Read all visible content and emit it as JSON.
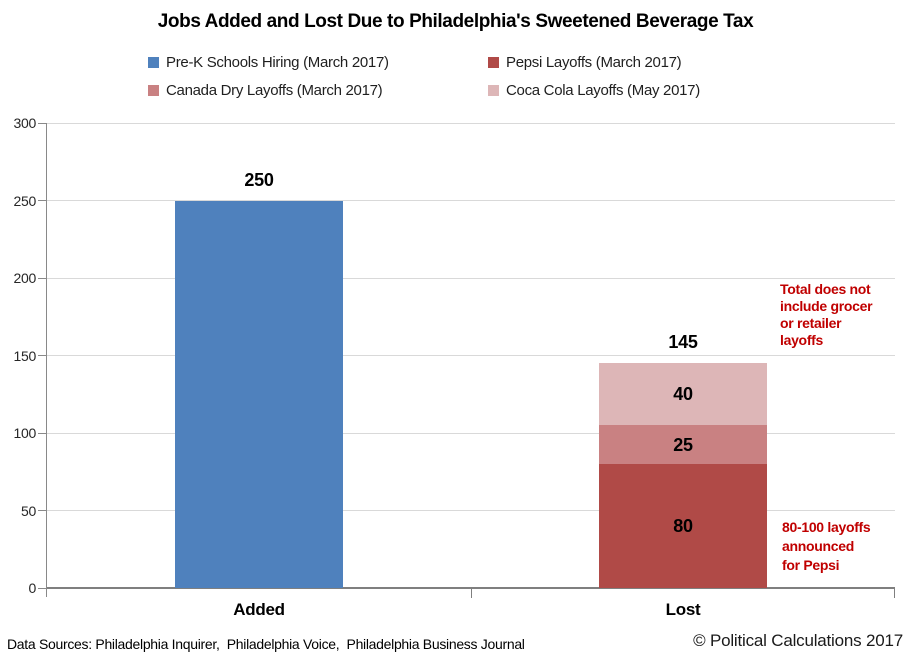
{
  "title": "Jobs Added and Lost Due to Philadelphia's Sweetened Beverage Tax",
  "legend": {
    "items": [
      {
        "label": "Pre-K Schools Hiring (March 2017)",
        "color": "#4F81BD"
      },
      {
        "label": "Pepsi Layoffs (March 2017)",
        "color": "#B04A47"
      },
      {
        "label": "Canada Dry Layoffs (March 2017)",
        "color": "#C98182"
      },
      {
        "label": "Coca Cola Layoffs (May 2017)",
        "color": "#DDB6B7"
      }
    ]
  },
  "chart_data": {
    "type": "bar",
    "stacked": true,
    "categories": [
      "Added",
      "Lost"
    ],
    "series": [
      {
        "name": "Pre-K Schools Hiring (March 2017)",
        "color": "#4F81BD",
        "values": [
          250,
          0
        ]
      },
      {
        "name": "Pepsi Layoffs (March 2017)",
        "color": "#B04A47",
        "values": [
          0,
          80
        ]
      },
      {
        "name": "Canada Dry Layoffs (March 2017)",
        "color": "#C98182",
        "values": [
          0,
          25
        ]
      },
      {
        "name": "Coca Cola Layoffs (May 2017)",
        "color": "#DDB6B7",
        "values": [
          0,
          40
        ]
      }
    ],
    "totals": [
      250,
      145
    ],
    "title": "Jobs Added and Lost Due to Philadelphia's Sweetened Beverage Tax",
    "xlabel": "",
    "ylabel": "",
    "ylim": [
      0,
      300
    ],
    "yticks": [
      0,
      50,
      100,
      150,
      200,
      250,
      300
    ],
    "grid": true,
    "legend_position": "top"
  },
  "annotations": {
    "total_note": "Total does not\ninclude grocer\nor retailer\nlayoffs",
    "pepsi_note": "80-100 layoffs\nannounced\nfor Pepsi",
    "color": "#C00000"
  },
  "footer": {
    "data_sources": "Data Sources: Philadelphia Inquirer,  Philadelphia Voice,  Philadelphia Business Journal",
    "copyright": "© Political Calculations 2017"
  }
}
